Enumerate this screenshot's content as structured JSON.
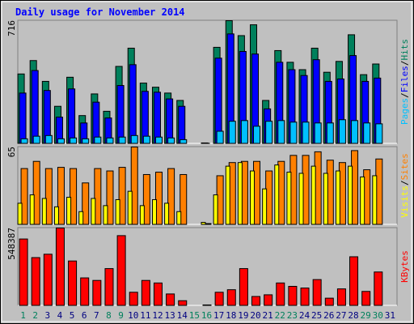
{
  "title": "Daily usage for November 2014",
  "legend_separator": "/",
  "chart_data": [
    {
      "type": "bar",
      "ylim": [
        0,
        716
      ],
      "yticks": [
        716
      ],
      "series": [
        {
          "name": "Hits",
          "color": "#00805c",
          "values": [
            406,
            484,
            363,
            218,
            387,
            164,
            290,
            189,
            450,
            556,
            353,
            329,
            295,
            252,
            0,
            5,
            561,
            716,
            629,
            692,
            252,
            542,
            474,
            431,
            556,
            416,
            479,
            634,
            402,
            464,
            null
          ]
        },
        {
          "name": "Files",
          "color": "#0000ff",
          "values": [
            295,
            426,
            310,
            155,
            319,
            121,
            242,
            150,
            339,
            460,
            305,
            300,
            261,
            218,
            0,
            3,
            498,
            639,
            537,
            522,
            203,
            474,
            431,
            397,
            489,
            363,
            377,
            513,
            363,
            382,
            null
          ]
        },
        {
          "name": "Pages",
          "color": "#00c0ff",
          "values": [
            29,
            44,
            48,
            29,
            34,
            29,
            39,
            34,
            39,
            48,
            44,
            39,
            34,
            24,
            0,
            2,
            73,
            131,
            135,
            102,
            131,
            135,
            126,
            126,
            121,
            121,
            140,
            135,
            121,
            116,
            null
          ]
        }
      ]
    },
    {
      "type": "bar",
      "ylim": [
        0,
        65
      ],
      "yticks": [
        65
      ],
      "series": [
        {
          "name": "Sites",
          "color": "#ff8000",
          "values": [
            47,
            53,
            47,
            48,
            47,
            35,
            47,
            45,
            48,
            65,
            42,
            44,
            47,
            42,
            0,
            1,
            41,
            52,
            53,
            53,
            45,
            53,
            58,
            58,
            61,
            54,
            52,
            62,
            46,
            55,
            null
          ]
        },
        {
          "name": "Visits",
          "color": "#ffff00",
          "values": [
            18,
            25,
            22,
            15,
            23,
            11,
            22,
            16,
            21,
            28,
            16,
            21,
            18,
            11,
            0,
            2,
            25,
            49,
            52,
            45,
            30,
            50,
            44,
            43,
            49,
            43,
            45,
            49,
            40,
            41,
            null
          ]
        }
      ]
    },
    {
      "type": "bar",
      "ylim": [
        0,
        548387
      ],
      "yticks": [
        548387
      ],
      "categories": [
        "1",
        "2",
        "3",
        "4",
        "5",
        "6",
        "7",
        "8",
        "9",
        "10",
        "11",
        "12",
        "13",
        "14",
        "15",
        "16",
        "17",
        "18",
        "19",
        "20",
        "21",
        "22",
        "23",
        "24",
        "25",
        "26",
        "27",
        "28",
        "29",
        "30",
        "31"
      ],
      "category_colors": [
        "#00805c",
        "#00805c",
        "#000080",
        "#000080",
        "#000080",
        "#000080",
        "#000080",
        "#00805c",
        "#00805c",
        "#000080",
        "#000080",
        "#000080",
        "#000080",
        "#000080",
        "#00805c",
        "#00805c",
        "#000080",
        "#000080",
        "#000080",
        "#000080",
        "#000080",
        "#00805c",
        "#00805c",
        "#000080",
        "#000080",
        "#000080",
        "#000080",
        "#000080",
        "#00805c",
        "#00805c",
        "#000080"
      ],
      "series": [
        {
          "name": "KBytes",
          "color": "#ff0000",
          "values": [
            470900,
            339800,
            363600,
            548387,
            315900,
            196700,
            178800,
            262300,
            494700,
            95400,
            178800,
            160900,
            83400,
            35800,
            0,
            6000,
            95400,
            113300,
            262300,
            65600,
            77500,
            160900,
            137100,
            125200,
            184800,
            53600,
            119200,
            345700,
            101300,
            238400,
            null
          ]
        }
      ]
    }
  ]
}
